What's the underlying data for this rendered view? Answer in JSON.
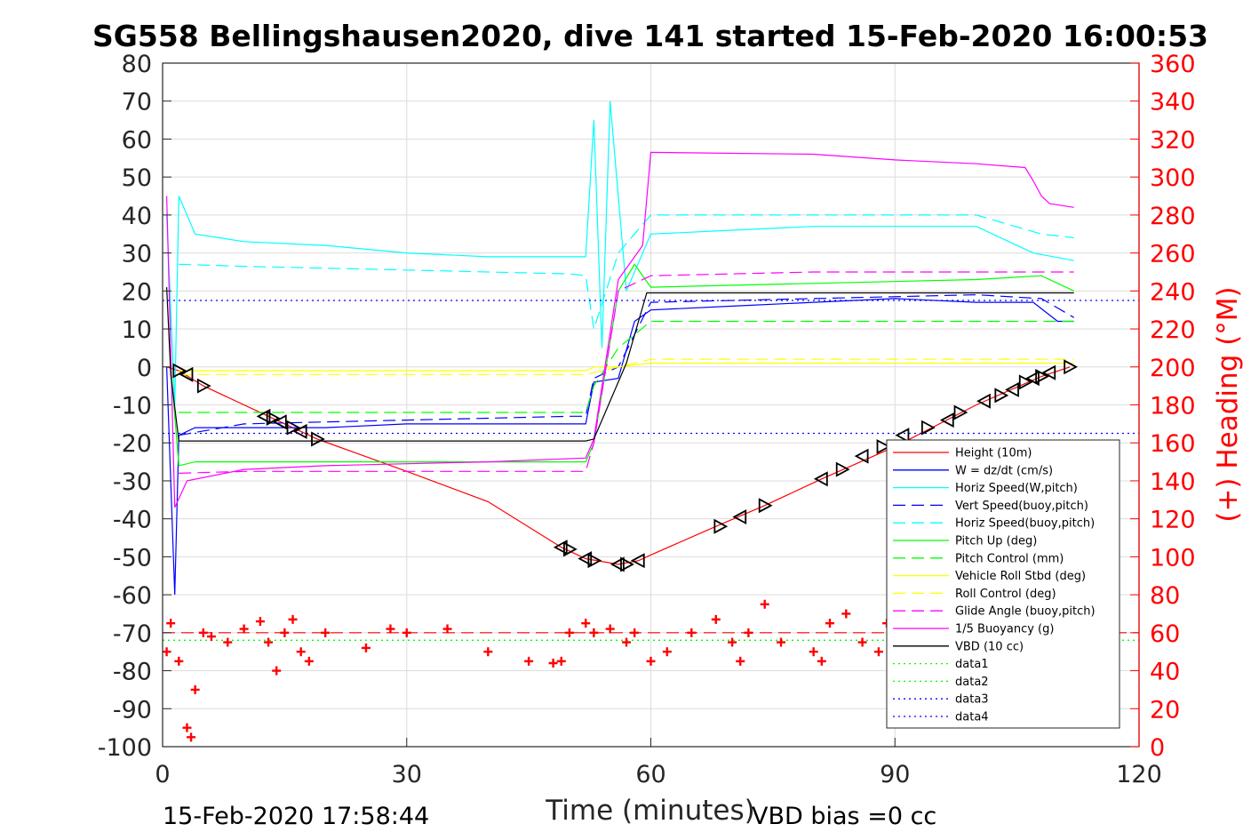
{
  "chart_data": {
    "type": "line",
    "title": "SG558 Bellingshausen2020, dive 141 started 15-Feb-2020 16:00:53",
    "xlabel": "Time (minutes)",
    "ylabel_right": "(+) Heading (°M)",
    "xlim": [
      0,
      120
    ],
    "ylim": [
      -100,
      80
    ],
    "ylim_right": [
      0,
      360
    ],
    "x_ticks": [
      "0",
      "30",
      "60",
      "90",
      "120"
    ],
    "y_ticks": [
      "80",
      "70",
      "60",
      "50",
      "40",
      "30",
      "20",
      "10",
      "0",
      "-10",
      "-20",
      "-30",
      "-40",
      "-50",
      "-60",
      "-70",
      "-80",
      "-90",
      "-100"
    ],
    "y_ticks_right": [
      "360",
      "340",
      "320",
      "300",
      "280",
      "260",
      "240",
      "220",
      "200",
      "180",
      "160",
      "140",
      "120",
      "100",
      "80",
      "60",
      "40",
      "20",
      "0"
    ],
    "grid": true,
    "legend_position": "lower-right",
    "footer_left": "15-Feb-2020 17:58:44",
    "footer_right": "VBD bias =0 cc",
    "colors": {
      "heading": "#ff0000",
      "right_axis": "#ff0000",
      "axes": "#262626"
    },
    "series": [
      {
        "name": "Height (10m)",
        "color": "#ff0000",
        "style": "solid",
        "x": [
          0.5,
          2,
          5,
          13,
          19,
          30,
          40,
          49,
          52,
          56,
          58.5,
          60,
          68,
          74,
          81,
          90,
          100,
          108,
          111.5
        ],
        "y": [
          0,
          -1,
          -5,
          -13,
          -19,
          -27.5,
          -35.5,
          -47.5,
          -50.5,
          -52,
          -51,
          -49.5,
          -42,
          -36.5,
          -29.5,
          -21,
          -10,
          -2.5,
          0
        ]
      },
      {
        "name": "W = dz/dt (cm/s)",
        "color": "#0000ff",
        "style": "solid",
        "x": [
          0.5,
          1.5,
          2,
          4,
          10,
          20,
          30,
          40,
          48,
          52,
          53,
          56,
          58,
          60,
          70,
          80,
          90,
          100,
          107,
          110,
          112
        ],
        "y": [
          0,
          -60,
          -18,
          -16,
          -16,
          -16,
          -15,
          -15,
          -15,
          -15,
          -4,
          -3,
          12,
          15,
          16,
          17,
          18,
          17,
          17,
          12,
          12
        ]
      },
      {
        "name": "Horiz Speed(W,pitch)",
        "color": "#00ffff",
        "style": "solid",
        "x": [
          0.5,
          1.5,
          2,
          4,
          10,
          20,
          30,
          40,
          50,
          52,
          53,
          54,
          55,
          57,
          60,
          70,
          80,
          90,
          100,
          107,
          112
        ],
        "y": [
          40,
          -10,
          45,
          35,
          33,
          32,
          30,
          29,
          29,
          29,
          65,
          5,
          70,
          20,
          35,
          36,
          37,
          37,
          37,
          30,
          28
        ]
      },
      {
        "name": "Vert Speed(buoy,pitch)",
        "color": "#0000ff",
        "style": "dashed",
        "x": [
          2,
          10,
          20,
          30,
          40,
          50,
          52,
          53,
          56,
          60,
          80,
          100,
          108,
          112
        ],
        "y": [
          -18,
          -15,
          -14.5,
          -14,
          -13.5,
          -13,
          -13,
          -3,
          0,
          17,
          18,
          19,
          18,
          13
        ]
      },
      {
        "name": "Horiz Speed(buoy,pitch)",
        "color": "#00ffff",
        "style": "dashed",
        "x": [
          2,
          10,
          20,
          30,
          40,
          50,
          52,
          53,
          56,
          60,
          80,
          100,
          108,
          112
        ],
        "y": [
          27,
          26.5,
          26,
          25.5,
          25,
          24.5,
          24,
          10,
          30,
          40,
          40,
          40,
          35,
          34
        ]
      },
      {
        "name": "Pitch Up (deg)",
        "color": "#00ff00",
        "style": "solid",
        "x": [
          1,
          2,
          4,
          20,
          30,
          40,
          52,
          53,
          56,
          58,
          60,
          80,
          100,
          108,
          112
        ],
        "y": [
          0,
          -26,
          -25,
          -25,
          -25,
          -25,
          -25,
          -20,
          20,
          27,
          21,
          22,
          23,
          24,
          20
        ]
      },
      {
        "name": "Pitch Control (mm)",
        "color": "#00ff00",
        "style": "dashed",
        "x": [
          2,
          20,
          40,
          52,
          53,
          56,
          60,
          80,
          100,
          112
        ],
        "y": [
          -12,
          -12,
          -12,
          -12,
          -5,
          5,
          12,
          12,
          12,
          12
        ]
      },
      {
        "name": "Vehicle Roll Stbd (deg)",
        "color": "#ffff00",
        "style": "solid",
        "x": [
          2,
          10,
          20,
          30,
          40,
          50,
          52,
          53,
          56,
          60,
          80,
          100,
          112
        ],
        "y": [
          -1,
          -1,
          -1,
          -1,
          -1,
          -1,
          -1,
          0,
          0,
          1,
          1,
          1,
          1
        ]
      },
      {
        "name": "Roll Control (deg)",
        "color": "#ffff00",
        "style": "dashed",
        "x": [
          2,
          10,
          20,
          30,
          40,
          50,
          52,
          56,
          60,
          80,
          100,
          112
        ],
        "y": [
          -2,
          -2,
          -2,
          -2,
          -2,
          -2,
          -2,
          0,
          2,
          2,
          2,
          2
        ]
      },
      {
        "name": "Glide Angle (buoy,pitch)",
        "color": "#ff00ff",
        "style": "dashed",
        "x": [
          2,
          10,
          20,
          30,
          40,
          50,
          52,
          53,
          56,
          60,
          80,
          100,
          112
        ],
        "y": [
          -28,
          -27.5,
          -27.5,
          -27.5,
          -27.5,
          -27.5,
          -27.5,
          -20,
          20,
          24,
          25,
          25,
          25
        ]
      },
      {
        "name": "1/5 Buoyancy (g)",
        "color": "#ff00ff",
        "style": "solid",
        "x": [
          0.5,
          1.5,
          3,
          10,
          20,
          30,
          40,
          52,
          53,
          56,
          59,
          60,
          80,
          90,
          100,
          106,
          107,
          108,
          109,
          112
        ],
        "y": [
          45,
          -37,
          -30,
          -27,
          -26,
          -25.5,
          -25,
          -24,
          -19,
          23,
          32,
          56.5,
          56,
          54.5,
          53.5,
          52.5,
          49,
          45,
          43,
          42
        ]
      },
      {
        "name": "VBD (10 cc)",
        "color": "#000000",
        "style": "solid",
        "x": [
          0.5,
          1,
          2,
          52,
          53,
          57,
          59.5,
          60,
          112
        ],
        "y": [
          21,
          -2,
          -19.5,
          -19.5,
          -19,
          1,
          19.5,
          19.5,
          19.5
        ]
      },
      {
        "name": "data1",
        "color": "#00ff00",
        "style": "dotted",
        "x": [
          0,
          120
        ],
        "y": [
          -72,
          -72
        ]
      },
      {
        "name": "data2",
        "color": "#00ff00",
        "style": "dotted",
        "x": [
          0,
          120
        ],
        "y": [
          -72,
          -72
        ]
      },
      {
        "name": "data3",
        "color": "#0000ff",
        "style": "dotted",
        "x": [
          0,
          120
        ],
        "y": [
          -17.5,
          -17.5
        ]
      },
      {
        "name": "data4",
        "color": "#0000ff",
        "style": "dotted",
        "x": [
          0,
          120
        ],
        "y": [
          17.5,
          17.5
        ]
      }
    ],
    "heading_series": {
      "axis": "right",
      "color": "#ff0000",
      "marker": "+",
      "x": [
        0.5,
        1,
        2,
        3,
        3.5,
        4,
        5,
        6,
        8,
        10,
        12,
        13,
        14,
        15,
        16,
        17,
        18,
        20,
        25,
        28,
        30,
        35,
        40,
        45,
        48,
        49,
        50,
        52,
        53,
        55,
        57,
        58,
        60,
        62,
        65,
        68,
        70,
        71,
        72,
        74,
        76,
        80,
        81,
        82,
        84,
        86,
        88,
        89,
        90
      ],
      "y": [
        50,
        65,
        45,
        10,
        5,
        30,
        60,
        58,
        55,
        62,
        66,
        55,
        40,
        60,
        67,
        50,
        45,
        60,
        52,
        62,
        60,
        62,
        50,
        45,
        44,
        45,
        60,
        65,
        60,
        62,
        55,
        60,
        45,
        50,
        60,
        67,
        55,
        45,
        60,
        75,
        55,
        50,
        45,
        65,
        70,
        55,
        50,
        65,
        80
      ]
    },
    "vbd_bias_marker": {
      "axis": "right",
      "y": 60,
      "color": "#ff0000",
      "style": "dashed"
    },
    "triangles": {
      "color": "#000000",
      "x": [
        2,
        3,
        5,
        12.5,
        13.5,
        14.5,
        16,
        17,
        19,
        49,
        50,
        52,
        53,
        56,
        57,
        58.5,
        68.5,
        71,
        74,
        81,
        83.5,
        86,
        88.5,
        91,
        94,
        96.5,
        98,
        101,
        103,
        104.5,
        106,
        107,
        108,
        109,
        111.5
      ],
      "y": [
        -1,
        -2,
        -5,
        -13,
        -13.5,
        -14.5,
        -16,
        -17,
        -19,
        -47.5,
        -48,
        -50.5,
        -51,
        -52,
        -52,
        -51,
        -42,
        -39.5,
        -36.5,
        -29.5,
        -27,
        -23.5,
        -21,
        -18,
        -16,
        -14,
        -12,
        -9,
        -7.5,
        -6,
        -4,
        -3,
        -2.5,
        -1.5,
        0
      ]
    }
  }
}
